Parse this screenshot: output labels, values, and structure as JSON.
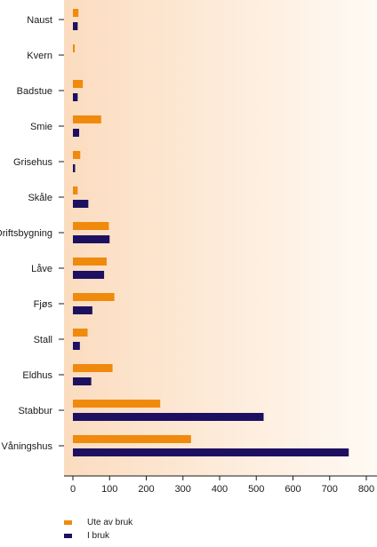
{
  "chart_data": {
    "type": "bar",
    "orientation": "horizontal",
    "categories": [
      "Naust",
      "Kvern",
      "Badstue",
      "Smie",
      "Grisehus",
      "Skåle",
      "Driftsbygning",
      "Låve",
      "Fjøs",
      "Stall",
      "Eldhus",
      "Stabbur",
      "Våningshus"
    ],
    "series": [
      {
        "name": "Ute av bruk",
        "color": "#f08a0c",
        "values": [
          15,
          5,
          27,
          77,
          20,
          13,
          98,
          92,
          113,
          40,
          108,
          238,
          322
        ]
      },
      {
        "name": "I bruk",
        "color": "#1e1061",
        "values": [
          13,
          0,
          13,
          17,
          6,
          42,
          100,
          85,
          53,
          19,
          50,
          520,
          752
        ]
      }
    ],
    "xticks": [
      "0",
      "100",
      "200",
      "300",
      "400",
      "500",
      "600",
      "700",
      "800"
    ],
    "xlim": [
      0,
      800
    ],
    "grid": false,
    "legend_position": "bottom-left",
    "plot_background": {
      "from": "#fbdcbf",
      "to": "#fffaf4"
    }
  }
}
